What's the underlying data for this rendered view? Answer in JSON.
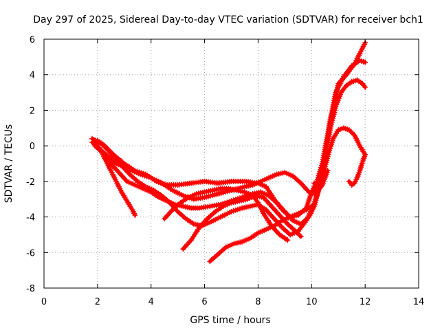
{
  "chart_data": {
    "type": "scatter",
    "title": "Day 297 of 2025, Sidereal Day-to-day VTEC variation (SDTVAR) for receiver bch1",
    "xlabel": "GPS time / hours",
    "ylabel": "SDTVAR / TECUs",
    "xlim": [
      0,
      14
    ],
    "ylim": [
      -8,
      6
    ],
    "xticks": [
      "0",
      "2",
      "4",
      "6",
      "8",
      "10",
      "12",
      "14"
    ],
    "yticks": [
      "6",
      "4",
      "2",
      "0",
      "-2",
      "-4",
      "-6",
      "-8"
    ],
    "grid": true,
    "marker": "plus",
    "color": "#ff0000",
    "series": [
      {
        "name": "track-1",
        "x": [
          1.8,
          2.2,
          2.6,
          3.0,
          3.4,
          3.8,
          4.2,
          4.6,
          5.0,
          5.5,
          6.0,
          6.5,
          7.0,
          7.5,
          8.0,
          8.3,
          8.6,
          8.9,
          9.2,
          9.5,
          9.8,
          10.0,
          10.2,
          10.4,
          10.6,
          10.8,
          11.0,
          11.3,
          11.6,
          11.8,
          12.0
        ],
        "y": [
          0.4,
          0.1,
          -0.5,
          -1.0,
          -1.4,
          -1.6,
          -2.0,
          -2.2,
          -2.2,
          -2.1,
          -2.0,
          -2.1,
          -2.0,
          -2.0,
          -2.1,
          -2.3,
          -3.0,
          -3.6,
          -4.0,
          -3.9,
          -3.5,
          -2.6,
          -2.0,
          -1.0,
          0.5,
          2.0,
          3.5,
          4.0,
          4.6,
          5.2,
          5.8
        ]
      },
      {
        "name": "track-2",
        "x": [
          1.8,
          2.1,
          2.4,
          2.7,
          3.0,
          3.3,
          3.6,
          4.0,
          4.4,
          4.8,
          5.2,
          5.6,
          6.0,
          6.5,
          7.0,
          7.5,
          7.8,
          8.1,
          8.4,
          8.7,
          9.0,
          9.3,
          9.6,
          9.9,
          10.1,
          10.3,
          10.5,
          10.7,
          10.9,
          11.2,
          11.5,
          11.8,
          12.0
        ],
        "y": [
          0.2,
          -0.2,
          -0.6,
          -1.0,
          -1.2,
          -1.4,
          -1.6,
          -1.8,
          -2.1,
          -2.5,
          -2.8,
          -3.0,
          -2.9,
          -2.7,
          -2.5,
          -2.3,
          -2.2,
          -2.0,
          -1.8,
          -1.6,
          -1.5,
          -1.7,
          -2.1,
          -2.6,
          -2.7,
          -1.8,
          -0.2,
          1.5,
          3.0,
          3.9,
          4.5,
          4.8,
          4.7
        ]
      },
      {
        "name": "track-3",
        "x": [
          1.9,
          2.2,
          2.5,
          2.8,
          3.1,
          3.4,
          3.7,
          4.0,
          4.3,
          4.6,
          4.9,
          5.2,
          5.5,
          5.8,
          6.2,
          6.6,
          7.0,
          7.4,
          7.8,
          8.1,
          8.4,
          8.7,
          9.0,
          9.3,
          9.6,
          9.9,
          10.1,
          10.3,
          10.5,
          10.7,
          10.9,
          11.1,
          11.3,
          11.5,
          11.7,
          11.9,
          12.0
        ],
        "y": [
          0.0,
          -0.4,
          -1.0,
          -1.5,
          -2.0,
          -2.2,
          -2.4,
          -2.6,
          -2.9,
          -3.1,
          -3.3,
          -3.4,
          -3.5,
          -3.5,
          -3.4,
          -3.3,
          -3.1,
          -2.9,
          -2.7,
          -2.6,
          -2.8,
          -3.2,
          -3.7,
          -4.2,
          -4.4,
          -4.0,
          -3.4,
          -2.2,
          -0.6,
          1.0,
          2.2,
          3.0,
          3.4,
          3.6,
          3.7,
          3.5,
          3.3
        ]
      },
      {
        "name": "track-4",
        "x": [
          2.0,
          2.3,
          2.6,
          2.9,
          3.2,
          3.5,
          3.8,
          4.1,
          4.4,
          4.7,
          5.0,
          5.3,
          5.6,
          5.9,
          6.2,
          6.6,
          7.0,
          7.4,
          7.7,
          8.0,
          8.3,
          8.6,
          8.9,
          9.2,
          9.5,
          9.8,
          10.0,
          10.2,
          10.4,
          10.6,
          10.8,
          11.0,
          11.2,
          11.4,
          11.6,
          11.8,
          12.0
        ],
        "y": [
          0.3,
          -0.1,
          -0.6,
          -1.1,
          -1.6,
          -2.0,
          -2.3,
          -2.5,
          -2.8,
          -3.2,
          -3.7,
          -4.1,
          -4.4,
          -4.5,
          -4.3,
          -4.0,
          -3.7,
          -3.5,
          -3.4,
          -3.3,
          -3.6,
          -4.1,
          -4.6,
          -5.0,
          -4.8,
          -4.2,
          -3.6,
          -2.8,
          -1.8,
          -0.6,
          0.4,
          0.9,
          1.0,
          0.9,
          0.6,
          0.0,
          -0.5
        ]
      },
      {
        "name": "track-5",
        "x": [
          1.9,
          2.1,
          2.3,
          2.5,
          2.7,
          2.9,
          3.1,
          3.3,
          3.4
        ],
        "y": [
          0.2,
          -0.2,
          -0.8,
          -1.4,
          -2.0,
          -2.6,
          -3.1,
          -3.6,
          -3.9
        ]
      },
      {
        "name": "track-6",
        "x": [
          4.5,
          4.8,
          5.1,
          5.4,
          5.7,
          6.0,
          6.3,
          6.6,
          6.9,
          7.2,
          7.5,
          7.8,
          8.0,
          8.2,
          8.5,
          8.8,
          9.1
        ],
        "y": [
          -4.1,
          -3.6,
          -3.2,
          -2.9,
          -2.7,
          -2.6,
          -2.5,
          -2.4,
          -2.4,
          -2.5,
          -2.6,
          -2.8,
          -3.2,
          -3.8,
          -4.5,
          -5.0,
          -5.3
        ]
      },
      {
        "name": "track-7",
        "x": [
          5.2,
          5.5,
          5.8,
          6.1,
          6.4,
          6.7,
          7.0,
          7.3,
          7.6,
          7.9,
          8.2,
          8.5,
          8.8,
          9.1,
          9.4,
          9.6
        ],
        "y": [
          -5.8,
          -5.3,
          -4.6,
          -4.1,
          -3.7,
          -3.4,
          -3.2,
          -3.1,
          -3.0,
          -2.8,
          -2.9,
          -3.4,
          -3.9,
          -4.4,
          -4.8,
          -5.1
        ]
      },
      {
        "name": "track-8",
        "x": [
          6.2,
          6.5,
          6.8,
          7.1,
          7.4,
          7.7,
          8.0,
          8.3,
          8.6,
          8.9,
          9.2,
          9.5,
          9.8,
          10.1
        ],
        "y": [
          -6.5,
          -6.1,
          -5.7,
          -5.5,
          -5.4,
          -5.2,
          -4.9,
          -4.7,
          -4.5,
          -4.2,
          -4.0,
          -3.8,
          -3.6,
          -3.3
        ]
      },
      {
        "name": "track-9",
        "x": [
          10.1,
          10.2,
          10.3,
          10.4,
          10.5,
          10.6
        ],
        "y": [
          -2.1,
          -2.3,
          -2.4,
          -2.2,
          -1.8,
          -1.4
        ]
      },
      {
        "name": "track-10",
        "x": [
          11.4,
          11.5,
          11.6,
          11.7,
          11.8,
          11.9,
          12.0
        ],
        "y": [
          -2.0,
          -2.2,
          -2.1,
          -1.8,
          -1.4,
          -0.9,
          -0.5
        ]
      }
    ]
  }
}
